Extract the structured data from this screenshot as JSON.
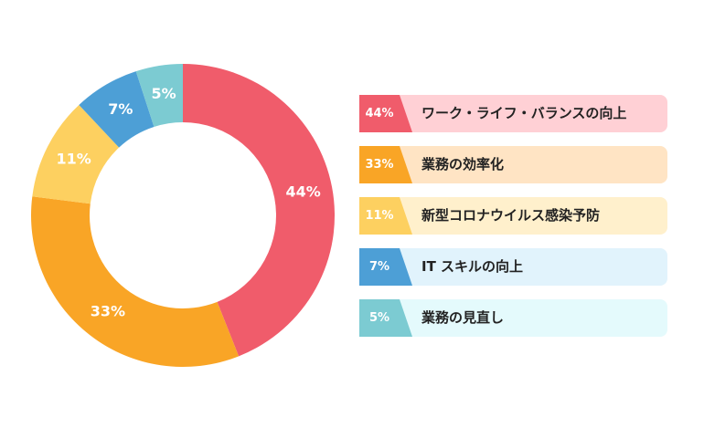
{
  "chart_data": {
    "type": "pie",
    "categories": [
      "ワーク・ライフ・バランスの向上",
      "業務の効率化",
      "新型コロナウイルス感染予防",
      "IT スキルの向上",
      "業務の見直し"
    ],
    "values": [
      44,
      33,
      11,
      7,
      5
    ],
    "value_labels": [
      "44%",
      "33%",
      "11%",
      "7%",
      "5%"
    ],
    "colors": [
      "#f05c6b",
      "#f9a526",
      "#fdd060",
      "#4d9fd6",
      "#7ccbd2"
    ],
    "legend_bg": [
      "#ffd0d5",
      "#ffe4c4",
      "#fff0cc",
      "#e1f3fc",
      "#e4fafc"
    ],
    "legend": "right",
    "donut": true
  }
}
